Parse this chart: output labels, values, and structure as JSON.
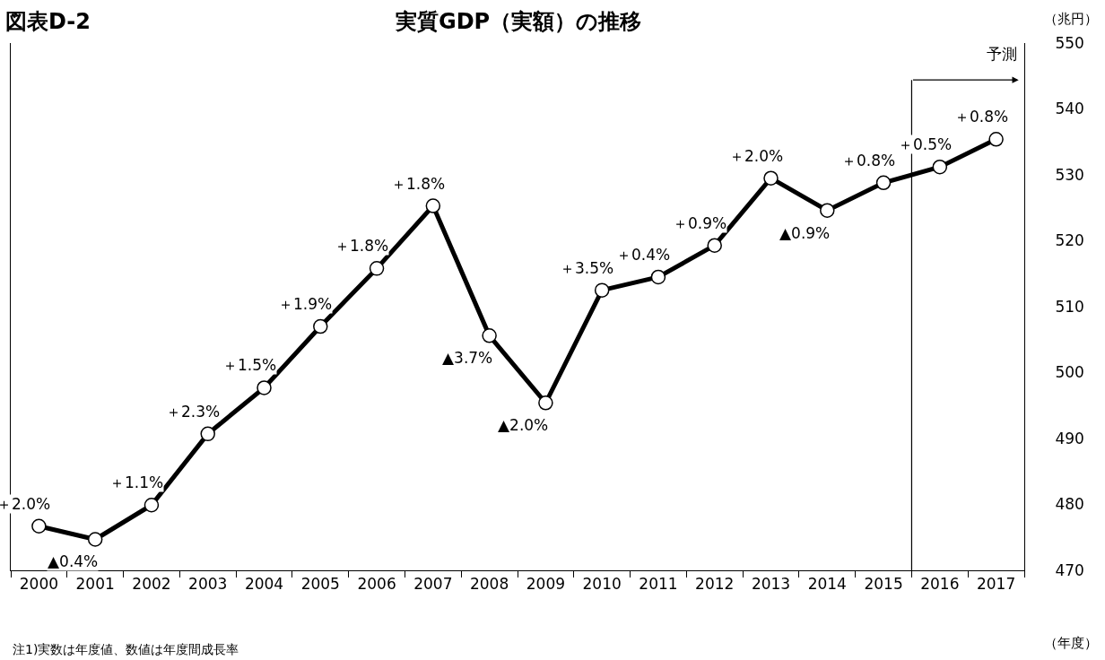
{
  "chart_data": {
    "type": "line",
    "title": "実質GDP（実額）の推移",
    "subtitle": "図表D-2",
    "ylabel": "（兆円）",
    "xlabel": "（年度）",
    "x": [
      2000,
      2001,
      2002,
      2003,
      2004,
      2005,
      2006,
      2007,
      2008,
      2009,
      2010,
      2011,
      2012,
      2013,
      2014,
      2015,
      2016,
      2017
    ],
    "series": [
      {
        "color": "#000000",
        "values": [
          476.7,
          474.7,
          479.9,
          490.7,
          497.7,
          507.0,
          515.8,
          525.3,
          505.6,
          495.4,
          512.5,
          514.5,
          519.3,
          529.5,
          524.6,
          528.8,
          531.2,
          535.4
        ]
      }
    ],
    "xlim": [
      1999.5,
      2017.5
    ],
    "xticks": [
      2000,
      2001,
      2002,
      2003,
      2004,
      2005,
      2006,
      2007,
      2008,
      2009,
      2010,
      2011,
      2012,
      2013,
      2014,
      2015,
      2016,
      2017
    ],
    "ylim": [
      470,
      550
    ],
    "yticks": [
      470,
      480,
      490,
      500,
      510,
      520,
      530,
      540,
      550
    ],
    "marker": "circle",
    "line_style": "solid",
    "ref_lines": [
      {
        "axis": "x",
        "value": 2015.5,
        "label": "予測",
        "color": "#000000"
      }
    ],
    "annotations": [
      {
        "text": "＋2.0%",
        "x": 2000,
        "y": 476.7
      },
      {
        "text": "▲0.4%",
        "x": 2001,
        "y": 474.7
      },
      {
        "text": "＋1.1%",
        "x": 2002,
        "y": 479.9
      },
      {
        "text": "＋2.3%",
        "x": 2003,
        "y": 490.7
      },
      {
        "text": "＋1.5%",
        "x": 2004,
        "y": 497.7
      },
      {
        "text": "＋1.9%",
        "x": 2005,
        "y": 507.0
      },
      {
        "text": "＋1.8%",
        "x": 2006,
        "y": 515.8
      },
      {
        "text": "＋1.8%",
        "x": 2007,
        "y": 525.3
      },
      {
        "text": "▲3.7%",
        "x": 2008,
        "y": 505.6
      },
      {
        "text": "▲2.0%",
        "x": 2009,
        "y": 495.4
      },
      {
        "text": "＋3.5%",
        "x": 2010,
        "y": 512.5
      },
      {
        "text": "＋0.4%",
        "x": 2011,
        "y": 514.5
      },
      {
        "text": "＋0.9%",
        "x": 2012,
        "y": 519.3
      },
      {
        "text": "＋2.0%",
        "x": 2013,
        "y": 529.5
      },
      {
        "text": "▲0.9%",
        "x": 2014,
        "y": 524.6
      },
      {
        "text": "＋0.8%",
        "x": 2015,
        "y": 528.8
      },
      {
        "text": "＋0.5%",
        "x": 2016,
        "y": 531.2
      },
      {
        "text": "＋0.8%",
        "x": 2017,
        "y": 535.4
      },
      "注1)実数は年度値、数値は年度間成長率"
    ]
  }
}
